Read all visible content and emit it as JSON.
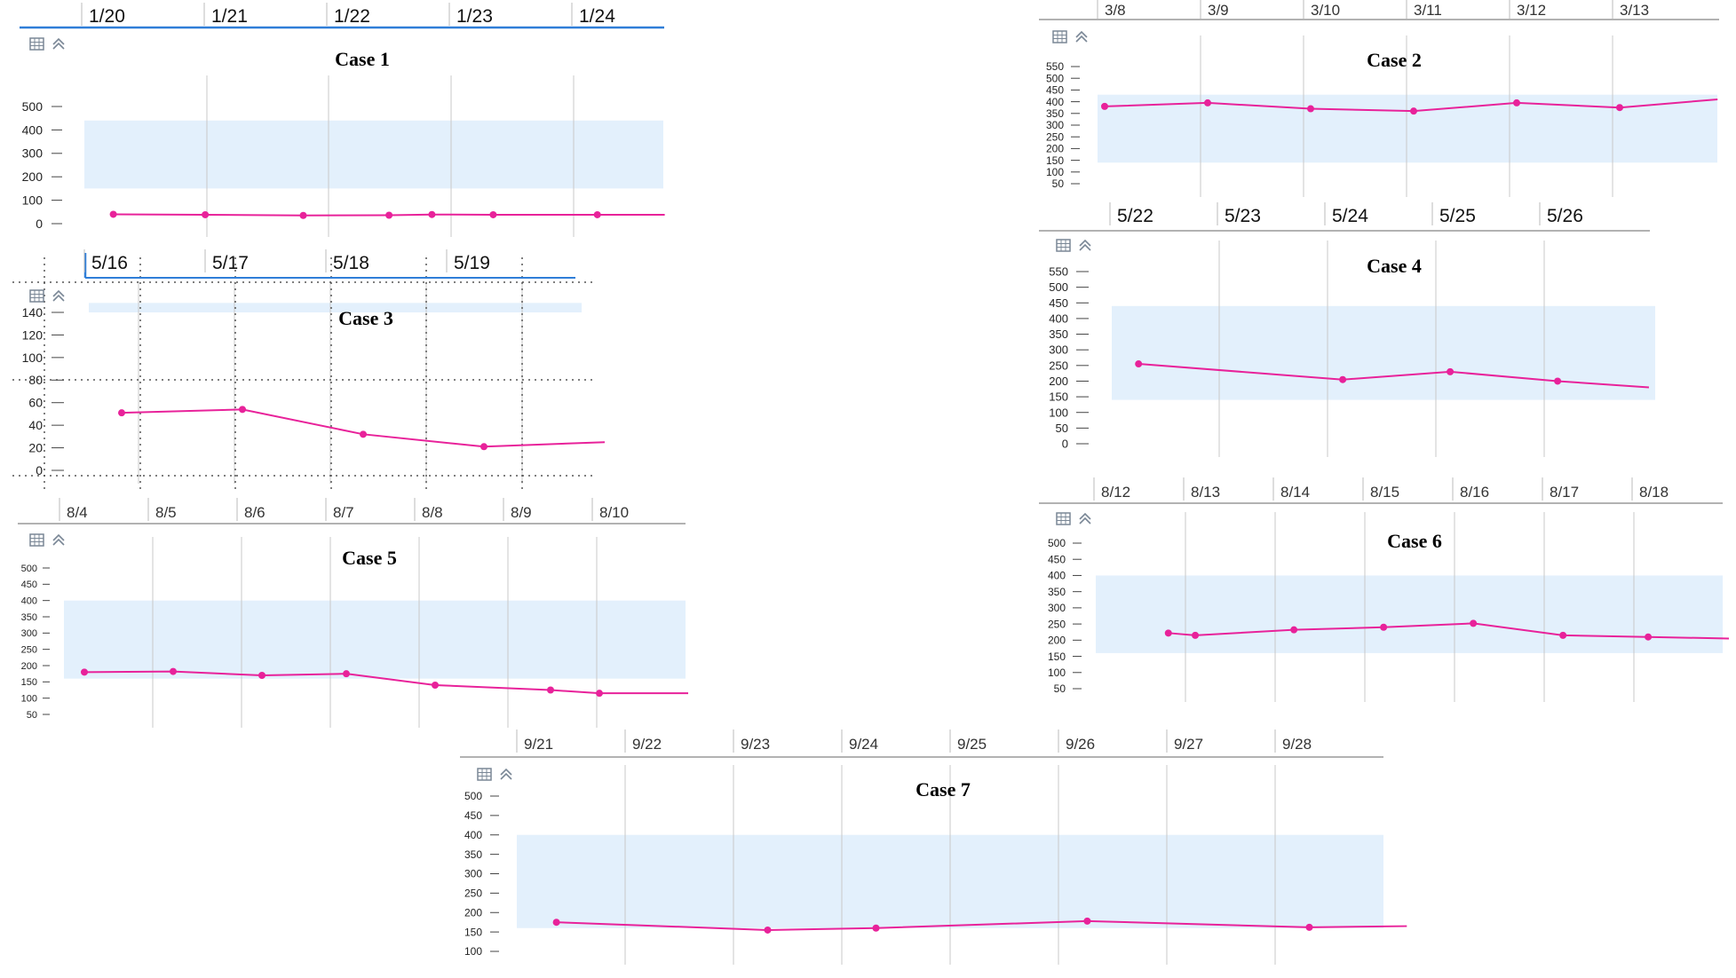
{
  "colors": {
    "line": "#e8229a",
    "band": "#e3f0fc",
    "grid": "#c8c8c8",
    "accent": "#2f7ed8",
    "icon": "#7a8796"
  },
  "icons": [
    "table-icon",
    "collapse-icon"
  ],
  "chart_data": [
    {
      "type": "line",
      "title": "Case 1",
      "dates": [
        "1/20",
        "1/21",
        "1/22",
        "1/23",
        "1/24"
      ],
      "yticks": [
        0,
        100,
        200,
        300,
        400,
        500
      ],
      "ylim": [
        0,
        500
      ],
      "band": [
        150,
        440
      ],
      "x": [
        0.2,
        0.95,
        1.75,
        2.45,
        2.8,
        3.3,
        4.15,
        4.7
      ],
      "y": [
        40,
        38,
        35,
        36,
        39,
        38,
        38,
        38
      ]
    },
    {
      "type": "line",
      "title": "Case 2",
      "dates": [
        "3/8",
        "3/9",
        "3/10",
        "3/11",
        "3/12",
        "3/13"
      ],
      "yticks": [
        50,
        100,
        150,
        200,
        250,
        300,
        350,
        400,
        450,
        500,
        550
      ],
      "ylim": [
        50,
        550
      ],
      "band": [
        140,
        430
      ],
      "x": [
        0,
        1.0,
        2.0,
        3.0,
        4.0,
        5.0,
        5.95
      ],
      "y": [
        380,
        395,
        370,
        360,
        395,
        375,
        410
      ]
    },
    {
      "type": "line",
      "title": "Case 3",
      "dates": [
        "5/16",
        "5/17",
        "5/18",
        "5/19"
      ],
      "yticks": [
        0,
        20,
        40,
        60,
        80,
        100,
        120,
        140
      ],
      "ylim": [
        0,
        140
      ],
      "band": [
        140,
        150
      ],
      "x": [
        0.25,
        1.25,
        2.25,
        3.25,
        4.25
      ],
      "y": [
        51,
        54,
        32,
        21,
        25
      ]
    },
    {
      "type": "line",
      "title": "Case 4",
      "dates": [
        "5/22",
        "5/23",
        "5/24",
        "5/25",
        "5/26"
      ],
      "yticks": [
        0,
        50,
        100,
        150,
        200,
        250,
        300,
        350,
        400,
        450,
        500,
        550
      ],
      "ylim": [
        0,
        550
      ],
      "band": [
        140,
        440
      ],
      "x": [
        0.2,
        2.1,
        3.1,
        4.1,
        4.95
      ],
      "y": [
        255,
        205,
        230,
        200,
        180
      ]
    },
    {
      "type": "line",
      "title": "Case 5",
      "dates": [
        "8/4",
        "8/5",
        "8/6",
        "8/7",
        "8/8",
        "8/9",
        "8/10"
      ],
      "yticks": [
        50,
        100,
        150,
        200,
        250,
        300,
        350,
        400,
        450,
        500
      ],
      "ylim": [
        50,
        500
      ],
      "band": [
        160,
        400
      ],
      "x": [
        0.2,
        1.2,
        2.2,
        3.15,
        4.15,
        5.45,
        6.0,
        7.0
      ],
      "y": [
        180,
        182,
        170,
        175,
        140,
        125,
        115,
        115
      ]
    },
    {
      "type": "line",
      "title": "Case 6",
      "dates": [
        "8/12",
        "8/13",
        "8/14",
        "8/15",
        "8/16",
        "8/17",
        "8/18"
      ],
      "yticks": [
        50,
        100,
        150,
        200,
        250,
        300,
        350,
        400,
        450,
        500
      ],
      "ylim": [
        50,
        500
      ],
      "band": [
        160,
        400
      ],
      "x": [
        0.75,
        1.05,
        2.15,
        3.15,
        4.15,
        5.15,
        6.1,
        7.0
      ],
      "y": [
        222,
        215,
        232,
        240,
        252,
        215,
        210,
        205
      ]
    },
    {
      "type": "line",
      "title": "Case 7",
      "dates": [
        "9/21",
        "9/22",
        "9/23",
        "9/24",
        "9/25",
        "9/26",
        "9/27",
        "9/28"
      ],
      "yticks": [
        100,
        150,
        200,
        250,
        300,
        350,
        400,
        450,
        500
      ],
      "ylim": [
        100,
        500
      ],
      "band": [
        160,
        400
      ],
      "x": [
        0.3,
        2.25,
        3.25,
        5.2,
        7.25,
        8.15
      ],
      "y": [
        175,
        155,
        160,
        178,
        162,
        165
      ]
    }
  ]
}
